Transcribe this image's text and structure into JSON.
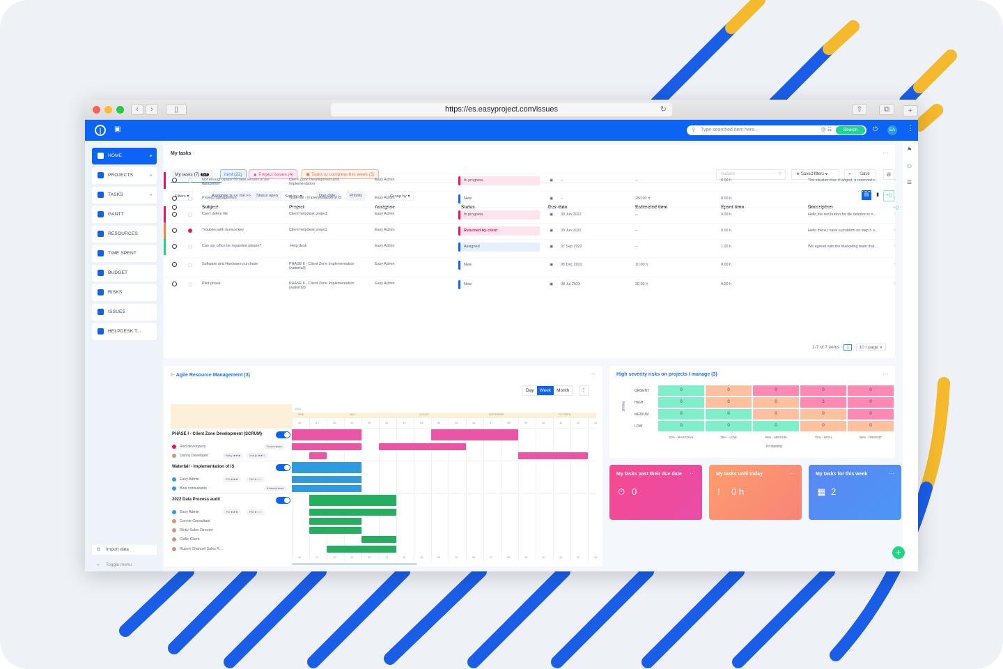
{
  "browser": {
    "url": "https://es.easyproject.com/issues"
  },
  "topbar": {
    "search_placeholder": "Type searched item here...",
    "search_button": "Search",
    "avatar": "EA"
  },
  "sidebar": {
    "items": [
      {
        "label": "HOME",
        "active": true,
        "chev": true
      },
      {
        "label": "PROJECTS",
        "chev": true
      },
      {
        "label": "TASKS",
        "chev": true
      },
      {
        "label": "GANTT"
      },
      {
        "label": "RESOURCES"
      },
      {
        "label": "TIME SPENT"
      },
      {
        "label": "BUDGET"
      },
      {
        "label": "RISKS"
      },
      {
        "label": "ISSUES"
      },
      {
        "label": "HELPDESK T..."
      }
    ],
    "import": "Import data",
    "toggle": "Toggle menu"
  },
  "tasks": {
    "title": "My tasks",
    "tabs": [
      {
        "label": "My tasks (7)",
        "badge": "DEF"
      },
      {
        "label": "html (22)"
      },
      {
        "label": "▲ Project issues (4)"
      },
      {
        "label": "▣ Tasks to complete this week (5)"
      }
    ],
    "subject_placeholder": "Subject",
    "saved_filters": "★ Saved filters ▾",
    "save": "Save",
    "filters": [
      "Filters ▾",
      "Assignee is << me >>",
      "Status open",
      "Sort by: ▾",
      "Due date",
      "Priority",
      "Group by ▾"
    ],
    "columns": [
      "Subject",
      "Project",
      "Assignee",
      "Status",
      "Due date",
      "Estimated time",
      "Spent time",
      "Description"
    ],
    "rows": [
      {
        "subject": "Not enough space for new servers in our datacenter",
        "project": "Client Zone Development and Implementation",
        "assignee": "Easy Admin",
        "status": "In progress",
        "due": "--",
        "est": "--",
        "spent": "0.00 h",
        "desc": "The situation has changed, a reserved s...",
        "prio": "#f0106a",
        "st": "prog"
      },
      {
        "subject": "Project management",
        "project": "Waterfall - Implementation of IS",
        "assignee": "Easy Admin",
        "status": "New",
        "due": "--",
        "est": "250.00 h",
        "spent": "0.00 h",
        "desc": "",
        "prio": "",
        "st": "new"
      },
      {
        "subject": "Can't delete file",
        "project": "Client helpdesk project",
        "assignee": "Easy Admin",
        "status": "In progress",
        "due": "30 Jun 2022",
        "est": "--",
        "spent": "0.00 h",
        "desc": "Hello,the red button for file deletion is n...",
        "prio": "#f0106a",
        "st": "prog"
      },
      {
        "subject": "Troubles with licence key",
        "project": "Client helpdesk project",
        "assignee": "Easy Admin",
        "status": "Returned by client",
        "due": "30 Jun 2022",
        "est": "--",
        "spent": "0.00 h",
        "desc": "Hello there,I have a problem on step 5 o...",
        "prio": "#ff7d3b",
        "st": "ret"
      },
      {
        "subject": "Can our office be repainted please?",
        "project": ".Help desk",
        "assignee": "Easy Admin",
        "status": "Assigned",
        "due": "07 Sep 2022",
        "est": "--",
        "spent": "1.00 h",
        "desc": "We agreed with the Marketing team that...",
        "prio": "#1ed67f",
        "st": "asg"
      },
      {
        "subject": "Software and Hardware purchase",
        "project": "PHASE II - Client Zone Implementation (waterfall)",
        "assignee": "Easy Admin",
        "status": "New",
        "due": "05 Dec 2022",
        "est": "10.00 h",
        "spent": "0.00 h",
        "desc": "",
        "prio": "",
        "st": "new"
      },
      {
        "subject": "Pilot phase",
        "project": "PHASE II - Client Zone Implementation (waterfall)",
        "assignee": "Easy Admin",
        "status": "New",
        "due": "08 Jul 2023",
        "est": "30.00 h",
        "spent": "0.00 h",
        "desc": "",
        "prio": "",
        "st": "new"
      }
    ],
    "pagination": {
      "summary": "1-7 of 7 items",
      "page": "1",
      "per_page": "10 / page ∨"
    }
  },
  "gantt": {
    "title": "Agile Resource Management (3)",
    "views": [
      "Day",
      "Week",
      "Month"
    ],
    "year": "2022",
    "months": [
      "JUNE",
      "JULY",
      "AUGUST",
      "SEPTEMBER",
      "OCTOBER"
    ],
    "weeks": [
      "26",
      "27",
      "28",
      "29",
      "30",
      "31",
      "32",
      "33",
      "34",
      "35",
      "36",
      "37",
      "38",
      "39",
      "40",
      "41",
      "42",
      "43"
    ],
    "rows": [
      {
        "label": "PHASE I - Client Zone Development (SCRUM)",
        "group": true,
        "color": "#ea55a4",
        "bars": [
          [
            0,
            4
          ],
          [
            8,
            5
          ]
        ]
      },
      {
        "label": "Red developers",
        "tags": [
          "Scrum team"
        ],
        "color": "#ea55a4",
        "bars": [
          [
            0,
            4
          ],
          [
            5,
            5
          ]
        ]
      },
      {
        "label": "Danny Developer",
        "tags": [
          "Ruby ★★★",
          "Vue.js ★★☆"
        ],
        "color": "#ea55a4",
        "bars": [
          [
            1,
            1
          ],
          [
            13,
            4
          ]
        ]
      },
      {
        "label": "Waterfall - Implementation of IS",
        "group": true,
        "color": "#2e9ae0",
        "bars": [
          [
            0,
            4
          ]
        ]
      },
      {
        "label": "Easy Admin",
        "tags": [
          "PO ★★★",
          "PM ★☆☆"
        ],
        "color": "#2e9ae0",
        "bars": [
          [
            0,
            4
          ]
        ]
      },
      {
        "label": "Blue consultants",
        "tags": [
          "External team"
        ],
        "color": "#2e9ae0",
        "bars": [
          [
            0,
            4
          ]
        ]
      },
      {
        "label": "2022 Data Process audit",
        "group": true,
        "color": "#26ad5f",
        "bars": [
          [
            1,
            5
          ]
        ]
      },
      {
        "label": "Easy Admin",
        "tags": [
          "PO ★★★",
          "PM ★☆☆"
        ],
        "color": "#26ad5f",
        "bars": [
          [
            1,
            5
          ]
        ]
      },
      {
        "label": "Connie Consultant",
        "color": "#26ad5f",
        "bars": [
          [
            1,
            3
          ]
        ]
      },
      {
        "label": "Ricky Sales Director",
        "color": "#26ad5f",
        "bars": [
          [
            1,
            3
          ]
        ]
      },
      {
        "label": "Callie Client",
        "color": "#26ad5f",
        "bars": [
          [
            4,
            2
          ]
        ]
      },
      {
        "label": "Rupert Channel Sales R...",
        "color": "#26ad5f",
        "bars": [
          [
            2,
            4
          ]
        ]
      }
    ]
  },
  "risks": {
    "title": "High severity risks on projects I manage (3)",
    "ylabel": "Impact",
    "xlabel": "Probability",
    "impacts": [
      "URGENT",
      "HIGH",
      "MEDIUM",
      "LOW"
    ],
    "probs": [
      "10% - MARGINAL",
      "25% - LOW",
      "50% - MEDIUM",
      "75% - HIGH",
      "90% - URGENT"
    ],
    "values": [
      [
        0,
        0,
        0,
        0,
        0
      ],
      [
        0,
        0,
        0,
        3,
        0
      ],
      [
        0,
        0,
        0,
        0,
        0
      ],
      [
        0,
        0,
        0,
        0,
        0
      ]
    ],
    "levels": [
      [
        "g",
        "o",
        "r",
        "r",
        "r"
      ],
      [
        "g",
        "o",
        "o",
        "r",
        "r"
      ],
      [
        "g",
        "g",
        "o",
        "o",
        "r"
      ],
      [
        "g",
        "g",
        "g",
        "o",
        "o"
      ]
    ],
    "colors": {
      "g": "#7eefc9",
      "o": "#ffc0a0",
      "r": "#ff89b3"
    }
  },
  "kpis": [
    {
      "title": "My tasks past their due date",
      "value": "0",
      "icon": "⏱"
    },
    {
      "title": "My tasks until today",
      "value": "0 h",
      "icon": "!"
    },
    {
      "title": "My tasks for this week",
      "value": "2",
      "icon": "▦"
    }
  ]
}
